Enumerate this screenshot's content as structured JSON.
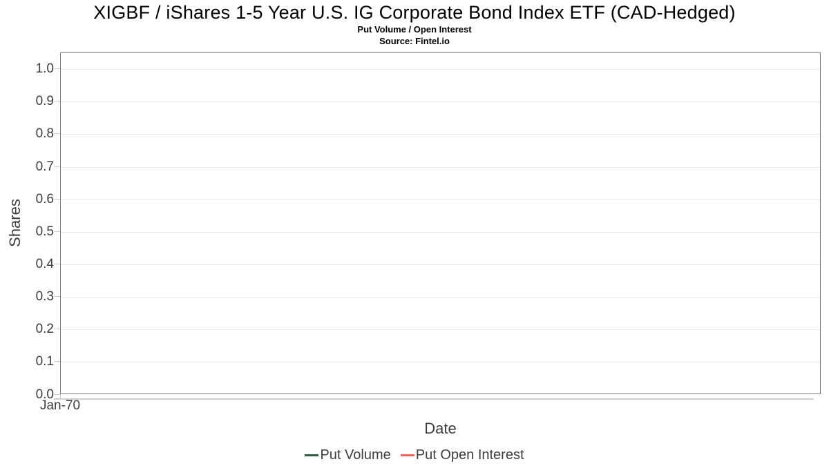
{
  "page": {
    "title": "XIGBF / iShares 1-5 Year U.S. IG Corporate Bond Index ETF (CAD-Hedged)",
    "subtitle": "Put Volume / Open Interest",
    "source": "Source: Fintel.io"
  },
  "chart_data": {
    "type": "line",
    "title": "XIGBF / iShares 1-5 Year U.S. IG Corporate Bond Index ETF (CAD-Hedged)",
    "subtitle": "Put Volume / Open Interest",
    "source": "Source: Fintel.io",
    "xlabel": "Date",
    "ylabel": "Shares",
    "ylim": [
      0.0,
      1.05
    ],
    "yticks": [
      0.0,
      0.1,
      0.2,
      0.3,
      0.4,
      0.5,
      0.6,
      0.7,
      0.8,
      0.9,
      1.0
    ],
    "ytick_labels": [
      "0.0",
      "0.1",
      "0.2",
      "0.3",
      "0.4",
      "0.5",
      "0.6",
      "0.7",
      "0.8",
      "0.9",
      "1.0"
    ],
    "xticks": [
      {
        "label": "Jan-70",
        "frac": 0
      }
    ],
    "grid": true,
    "legend_position": "bottom-center",
    "series": [
      {
        "name": "Put Volume",
        "color": "#2d5c3e",
        "x": [],
        "values": []
      },
      {
        "name": "Put Open Interest",
        "color": "#f15f5f",
        "x": [],
        "values": []
      }
    ]
  },
  "colors": {
    "grid": "#e6e6e6",
    "spine": "#7a7a7a",
    "tick": "#cccccc",
    "text": "#3d3d3d",
    "title": "#000000"
  }
}
